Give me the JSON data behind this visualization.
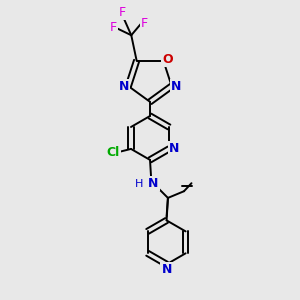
{
  "background_color": "#e8e8e8",
  "fig_size": [
    3.0,
    3.0
  ],
  "dpi": 100,
  "N_color": "#0000cc",
  "O_color": "#cc0000",
  "F_color": "#dd00dd",
  "Cl_color": "#00aa00",
  "C_color": "#000000",
  "bond_color": "#000000",
  "bond_lw": 1.4,
  "font_size": 8,
  "xlim": [
    0.1,
    0.9
  ],
  "ylim": [
    -0.05,
    1.05
  ]
}
